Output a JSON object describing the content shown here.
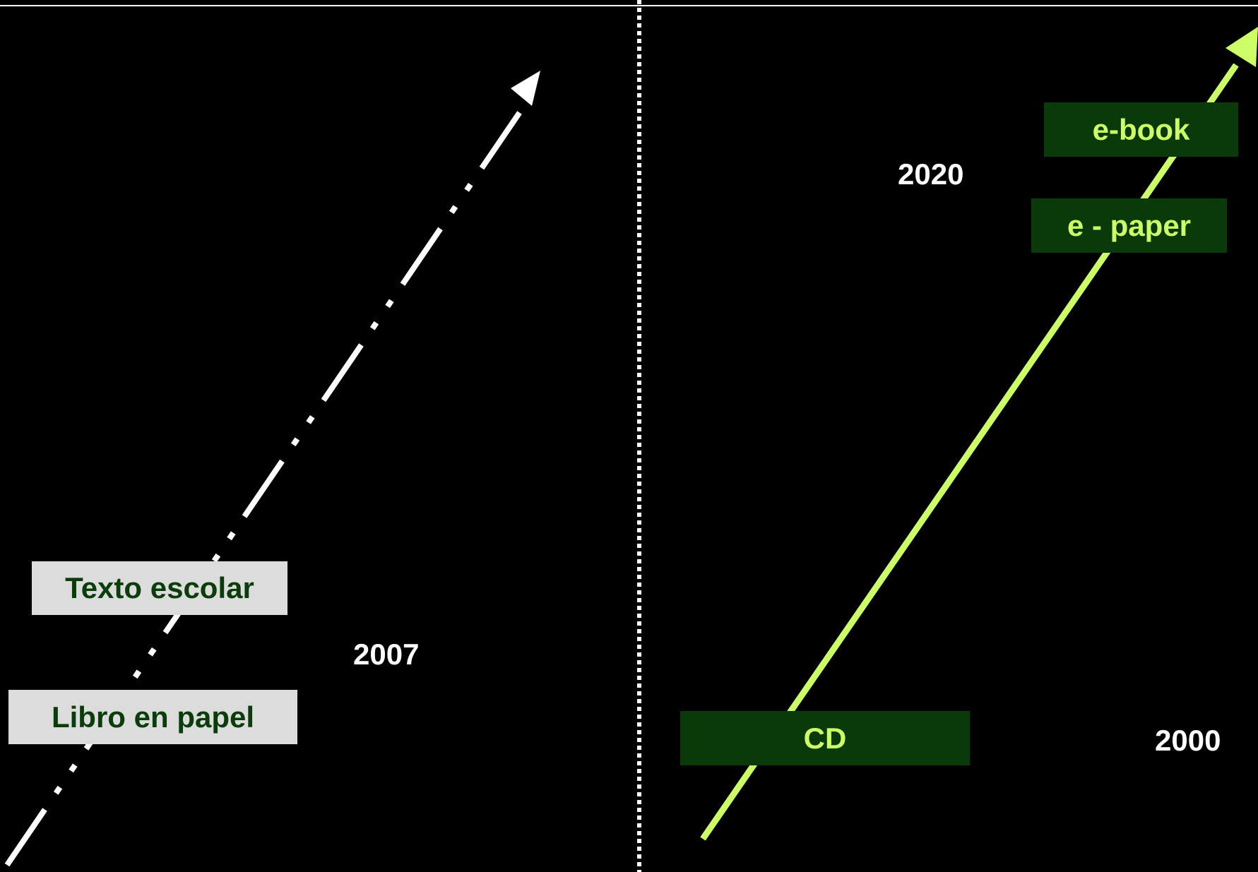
{
  "left": {
    "labels": {
      "paper_book": "Libro en papel",
      "school_text": "Texto escolar"
    },
    "year": "2007",
    "arrow_color": "#ffffff",
    "label_box_color": "#dcdcdc",
    "label_text_color": "#0b3d0b"
  },
  "right": {
    "labels": {
      "cd": "CD",
      "e_paper": "e - paper",
      "e_book": "e-book"
    },
    "year_start": "2000",
    "year_end": "2020",
    "arrow_color": "#ccff66",
    "label_box_color": "#0a3a0a"
  },
  "divider_style": "dotted",
  "background": "#000000"
}
